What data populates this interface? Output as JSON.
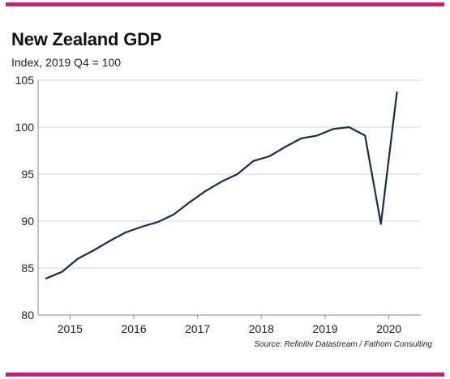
{
  "colors": {
    "accent_rule": "#c3207a",
    "line": "#1a2e45",
    "grid": "#d6d6d6",
    "axis": "#888888"
  },
  "header": {
    "title": "New Zealand GDP",
    "subtitle": "Index, 2019 Q4 = 100"
  },
  "footer": {
    "source": "Source: Refinitiv Datastream / Fathom Consulting"
  },
  "chart_data": {
    "type": "line",
    "title": "New Zealand GDP",
    "ylabel": "Index, 2019 Q4 = 100",
    "xlabel": "",
    "ylim": [
      80,
      105
    ],
    "xlim": [
      2014.5,
      2020.5
    ],
    "yticks": [
      80,
      85,
      90,
      95,
      100,
      105
    ],
    "xticks": [
      2015,
      2016,
      2017,
      2018,
      2019,
      2020
    ],
    "grid": "horizontal",
    "legend": "none",
    "series": [
      {
        "x": [
          2014.625,
          2014.875,
          2015.125,
          2015.375,
          2015.625,
          2015.875,
          2016.125,
          2016.375,
          2016.625,
          2016.875,
          2017.125,
          2017.375,
          2017.625,
          2017.875,
          2018.125,
          2018.375,
          2018.625,
          2018.875,
          2019.125,
          2019.375,
          2019.625,
          2019.875,
          2020.125
        ],
        "values": [
          83.9,
          84.6,
          86.0,
          86.9,
          87.9,
          88.8,
          89.4,
          89.9,
          90.7,
          92.0,
          93.2,
          94.2,
          95.0,
          96.4,
          96.9,
          97.9,
          98.8,
          99.1,
          99.8,
          100.0,
          99.1,
          89.7,
          103.7
        ]
      }
    ]
  }
}
